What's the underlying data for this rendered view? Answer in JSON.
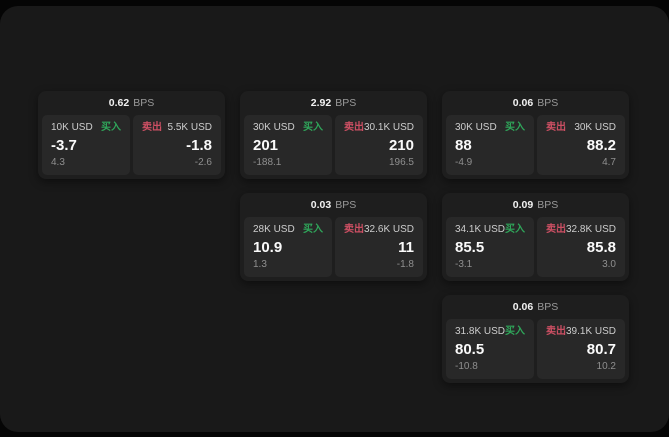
{
  "unit_label": "BPS",
  "buy_label": "买入",
  "sell_label": "卖出",
  "colors": {
    "buy": "#2fa65a",
    "sell": "#cc4f63",
    "window_bg": "#191919",
    "card_bg": "#1e1e1e",
    "tile_bg": "#282828"
  },
  "cards": [
    {
      "bps": "0.62",
      "row": 1,
      "col": 1,
      "buy": {
        "size": "10K USD",
        "value": "-3.7",
        "sub": "4.3"
      },
      "sell": {
        "size": "5.5K USD",
        "value": "-1.8",
        "sub": "-2.6"
      }
    },
    {
      "bps": "2.92",
      "row": 1,
      "col": 2,
      "buy": {
        "size": "30K USD",
        "value": "201",
        "sub": "-188.1"
      },
      "sell": {
        "size": "30.1K USD",
        "value": "210",
        "sub": "196.5"
      }
    },
    {
      "bps": "0.06",
      "row": 1,
      "col": 3,
      "buy": {
        "size": "30K USD",
        "value": "88",
        "sub": "-4.9"
      },
      "sell": {
        "size": "30K USD",
        "value": "88.2",
        "sub": "4.7"
      }
    },
    {
      "bps": "0.03",
      "row": 2,
      "col": 2,
      "buy": {
        "size": "28K USD",
        "value": "10.9",
        "sub": "1.3"
      },
      "sell": {
        "size": "32.6K USD",
        "value": "11",
        "sub": "-1.8"
      }
    },
    {
      "bps": "0.09",
      "row": 2,
      "col": 3,
      "buy": {
        "size": "34.1K USD",
        "value": "85.5",
        "sub": "-3.1"
      },
      "sell": {
        "size": "32.8K USD",
        "value": "85.8",
        "sub": "3.0"
      }
    },
    {
      "bps": "0.06",
      "row": 3,
      "col": 3,
      "buy": {
        "size": "31.8K USD",
        "value": "80.5",
        "sub": "-10.8"
      },
      "sell": {
        "size": "39.1K USD",
        "value": "80.7",
        "sub": "10.2"
      }
    }
  ]
}
